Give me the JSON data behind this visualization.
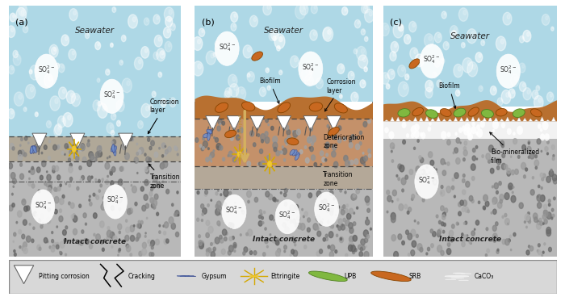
{
  "fig_width": 7.0,
  "fig_height": 3.68,
  "bg_color": "#ffffff",
  "seawater_color": "#aed8e6",
  "seawater_bubble_color": "#cce8f0",
  "concrete_color_light": "#b8b8b8",
  "concrete_color_dark": "#a0a0a0",
  "corrosion_tan": "#c8874a",
  "deterioration_tan": "#c89060",
  "transition_color": "#b0a898",
  "biofilm_brown": "#b87030",
  "biomineralized_white": "#f0f0f0",
  "panel_border": "#666666",
  "legend_bg": "#d8d8d8",
  "panel_labels": [
    "(a)",
    "(b)",
    "(c)"
  ],
  "seawater_label": "Seawater",
  "intact_concrete_label": "Intact concrete",
  "sulfate_label": "SO₄²⁻",
  "legend_labels": [
    "Pitting corrosion",
    "Cracking",
    "Gypsum",
    "Ettringite",
    "UPB",
    "SRB",
    "CaCO₃"
  ]
}
